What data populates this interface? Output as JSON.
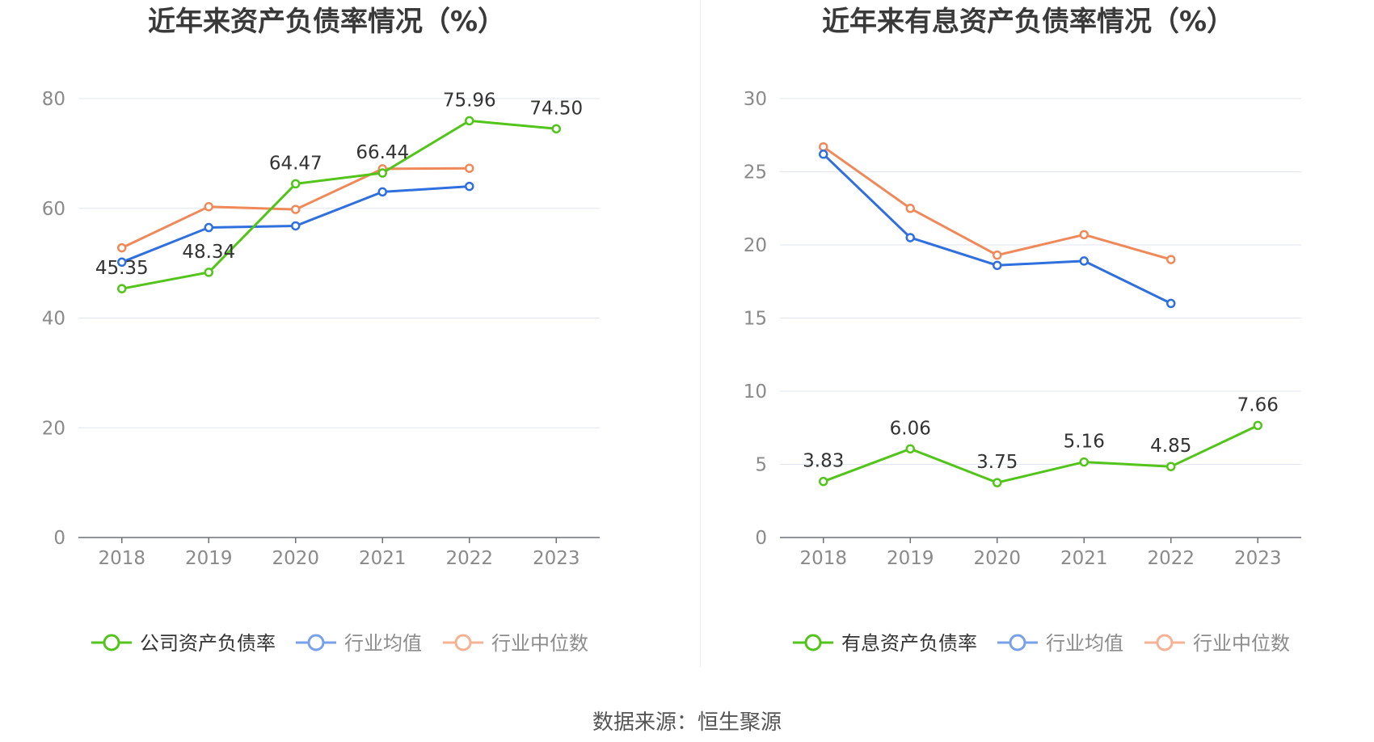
{
  "source": "数据来源：恒生聚源",
  "colors": {
    "green": "#52c41a",
    "blue": "#2f6fde",
    "orange": "#f0895a",
    "grid": "#e3e6f2",
    "axis": "#6e7079"
  },
  "chart_data": [
    {
      "type": "line",
      "title": "近年来资产负债率情况（%）",
      "categories": [
        "2018",
        "2019",
        "2020",
        "2021",
        "2022",
        "2023"
      ],
      "ylim": [
        0,
        80
      ],
      "yticks": [
        "0",
        "20",
        "40",
        "60",
        "80"
      ],
      "grid": true,
      "legend": "bottom",
      "series": [
        {
          "name": "公司资产负债率",
          "color": "#52c41a",
          "values": [
            45.35,
            48.34,
            64.47,
            66.44,
            75.96,
            74.5
          ],
          "labels": [
            "45.35",
            "48.34",
            "64.47",
            "66.44",
            "75.96",
            "74.50"
          ]
        },
        {
          "name": "行业均值",
          "color": "#2f6fde",
          "values": [
            50.2,
            56.5,
            56.8,
            63.0,
            64.0,
            null
          ]
        },
        {
          "name": "行业中位数",
          "color": "#f0895a",
          "values": [
            52.8,
            60.3,
            59.8,
            67.2,
            67.3,
            null
          ]
        }
      ]
    },
    {
      "type": "line",
      "title": "近年来有息资产负债率情况（%）",
      "categories": [
        "2018",
        "2019",
        "2020",
        "2021",
        "2022",
        "2023"
      ],
      "ylim": [
        0,
        30
      ],
      "yticks": [
        "0",
        "5",
        "10",
        "15",
        "20",
        "25",
        "30"
      ],
      "grid": true,
      "legend": "bottom",
      "series": [
        {
          "name": "有息资产负债率",
          "color": "#52c41a",
          "values": [
            3.83,
            6.06,
            3.75,
            5.16,
            4.85,
            7.66
          ],
          "labels": [
            "3.83",
            "6.06",
            "3.75",
            "5.16",
            "4.85",
            "7.66"
          ]
        },
        {
          "name": "行业均值",
          "color": "#2f6fde",
          "values": [
            26.2,
            20.5,
            18.6,
            18.9,
            16.0,
            null
          ]
        },
        {
          "name": "行业中位数",
          "color": "#f0895a",
          "values": [
            26.7,
            22.5,
            19.3,
            20.7,
            19.0,
            null
          ]
        }
      ]
    }
  ]
}
